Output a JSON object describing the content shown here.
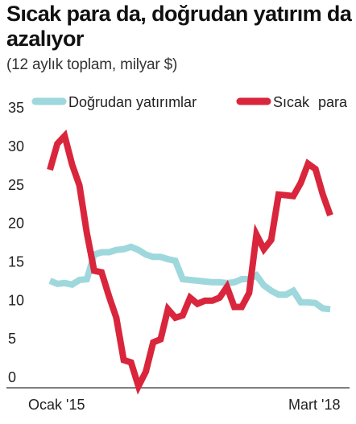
{
  "title": "Sıcak para da, doğrudan yatırım da azalıyor",
  "subtitle": "(12 aylık toplam, milyar $)",
  "chart_data": {
    "type": "line",
    "title": "Sıcak para da, doğrudan yatırım da azalıyor",
    "subtitle": "(12 aylık toplam, milyar $)",
    "x": [
      "2015-01",
      "2015-02",
      "2015-03",
      "2015-04",
      "2015-05",
      "2015-06",
      "2015-07",
      "2015-08",
      "2015-09",
      "2015-10",
      "2015-11",
      "2015-12",
      "2016-01",
      "2016-02",
      "2016-03",
      "2016-04",
      "2016-05",
      "2016-06",
      "2016-07",
      "2016-08",
      "2016-09",
      "2016-10",
      "2016-11",
      "2016-12",
      "2017-01",
      "2017-02",
      "2017-03",
      "2017-04",
      "2017-05",
      "2017-06",
      "2017-07",
      "2017-08",
      "2017-09",
      "2017-10",
      "2017-11",
      "2017-12",
      "2018-01",
      "2018-02",
      "2018-03"
    ],
    "x_tick_labels": [
      "Ocak '15",
      "Mart '18"
    ],
    "yticks": [
      0,
      5,
      10,
      15,
      20,
      25,
      30,
      35
    ],
    "ylim": [
      0,
      35
    ],
    "grid": false,
    "legend_position": "top",
    "series": [
      {
        "name": "Doğrudan yatırımlar",
        "color": "#9ed8dc",
        "values": [
          13.8,
          13.4,
          13.5,
          13.3,
          13.9,
          14.0,
          17.2,
          17.5,
          17.5,
          17.8,
          17.9,
          18.2,
          17.8,
          17.2,
          16.9,
          16.9,
          16.6,
          16.4,
          14.0,
          13.9,
          13.8,
          13.7,
          13.6,
          13.6,
          13.5,
          13.6,
          14.0,
          14.0,
          14.5,
          13.2,
          12.5,
          12.0,
          12.0,
          12.5,
          11.0,
          11.0,
          10.9,
          10.2,
          10.1
        ]
      },
      {
        "name": "Sıcak para",
        "color": "#d9263c",
        "values": [
          28.2,
          31.6,
          32.6,
          28.9,
          26.2,
          20.0,
          15.1,
          14.9,
          11.8,
          9.0,
          3.5,
          3.2,
          0.1,
          2.0,
          5.8,
          6.2,
          10.1,
          9.0,
          9.3,
          11.6,
          10.8,
          11.2,
          11.2,
          11.6,
          13.0,
          10.4,
          10.4,
          12.2,
          19.8,
          17.9,
          19.1,
          25.0,
          24.9,
          24.8,
          26.5,
          29.0,
          28.3,
          25.0,
          22.3
        ]
      }
    ]
  }
}
